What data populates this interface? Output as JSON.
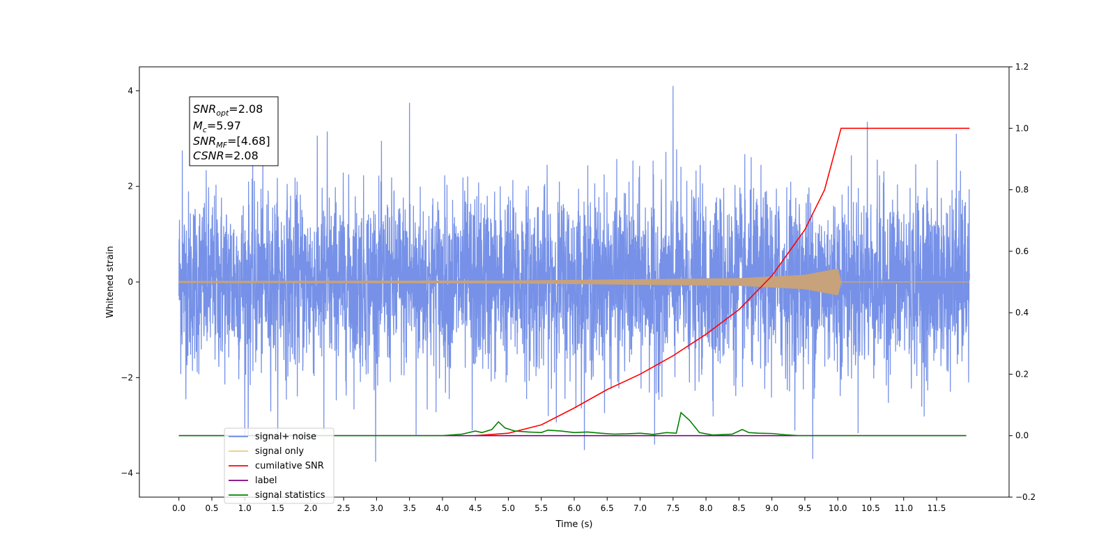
{
  "chart_data": {
    "type": "line",
    "xlabel": "Time (s)",
    "ylabel": "Whitened strain",
    "xlim": [
      -0.6,
      12.6
    ],
    "ylim": [
      -4.5,
      4.5
    ],
    "y2lim": [
      -0.2,
      1.2
    ],
    "x_ticks": [
      "0.0",
      "0.5",
      "1.0",
      "1.5",
      "2.0",
      "2.5",
      "3.0",
      "3.5",
      "4.0",
      "4.5",
      "5.0",
      "5.5",
      "6.0",
      "6.5",
      "7.0",
      "7.5",
      "8.0",
      "8.5",
      "9.0",
      "9.5",
      "10.0",
      "10.5",
      "11.0",
      "11.5"
    ],
    "y_ticks": [
      "4",
      "2",
      "0",
      "−2",
      "−4"
    ],
    "y2_ticks": [
      "1.2",
      "1.0",
      "0.8",
      "0.6",
      "0.4",
      "0.2",
      "0.0",
      "−0.2"
    ],
    "grid": false,
    "legend_position": "lower-left",
    "colors": {
      "signal_noise": "#6f8be6",
      "signal_only": "#f5c778",
      "cumulative_snr": "#ff0000",
      "label": "#800080",
      "signal_statistics": "#008000"
    },
    "annotation": {
      "snr_opt_main": "SNR",
      "snr_opt_sub": "opt",
      "snr_opt_val": "=2.08",
      "mc_main": "M",
      "mc_sub": "c",
      "mc_val": "=5.97",
      "snr_mf_main": "SNR",
      "snr_mf_sub": "MF",
      "snr_mf_val": "=[4.68]",
      "csnr_main": "CSNR",
      "csnr_val": "=2.08"
    },
    "series": [
      {
        "name": "signal+ noise",
        "axis": "left",
        "style": "noise",
        "x_range": [
          0.0,
          12.0
        ],
        "typical_amplitude": 1.1,
        "peaks": [
          {
            "x": 7.5,
            "y": 4.1
          },
          {
            "x": 3.5,
            "y": 3.75
          },
          {
            "x": 10.45,
            "y": 3.35
          },
          {
            "x": 11.8,
            "y": 3.1
          },
          {
            "x": 2.25,
            "y": 3.15
          },
          {
            "x": 0.05,
            "y": 2.75
          },
          {
            "x": 9.62,
            "y": -3.7
          },
          {
            "x": 7.22,
            "y": -3.4
          },
          {
            "x": 3.6,
            "y": -3.2
          },
          {
            "x": 1.05,
            "y": -3.2
          },
          {
            "x": 4.45,
            "y": -3.1
          },
          {
            "x": 2.2,
            "y": -3.1
          }
        ]
      },
      {
        "name": "signal only",
        "axis": "left",
        "style": "chirp",
        "x_range": [
          0.0,
          10.05
        ],
        "envelope": [
          [
            0.0,
            0.02
          ],
          [
            5.0,
            0.03
          ],
          [
            8.5,
            0.08
          ],
          [
            9.5,
            0.15
          ],
          [
            10.0,
            0.28
          ],
          [
            10.05,
            0.0
          ]
        ]
      },
      {
        "name": "cumilative SNR",
        "axis": "right",
        "points": [
          [
            4.5,
            0.0
          ],
          [
            5.0,
            0.008
          ],
          [
            5.5,
            0.035
          ],
          [
            6.0,
            0.09
          ],
          [
            6.5,
            0.15
          ],
          [
            7.0,
            0.2
          ],
          [
            7.5,
            0.26
          ],
          [
            8.0,
            0.33
          ],
          [
            8.5,
            0.41
          ],
          [
            9.0,
            0.52
          ],
          [
            9.5,
            0.67
          ],
          [
            9.8,
            0.8
          ],
          [
            10.0,
            0.96
          ],
          [
            10.05,
            1.0
          ],
          [
            12.0,
            1.0
          ]
        ]
      },
      {
        "name": "label",
        "axis": "right",
        "points": [
          [
            0.0,
            0.0
          ],
          [
            11.95,
            0.0
          ]
        ]
      },
      {
        "name": "signal statistics",
        "axis": "right",
        "points": [
          [
            0.0,
            0.0
          ],
          [
            4.0,
            0.0
          ],
          [
            4.3,
            0.005
          ],
          [
            4.5,
            0.015
          ],
          [
            4.6,
            0.01
          ],
          [
            4.75,
            0.02
          ],
          [
            4.85,
            0.045
          ],
          [
            4.95,
            0.025
          ],
          [
            5.1,
            0.015
          ],
          [
            5.3,
            0.012
          ],
          [
            5.5,
            0.01
          ],
          [
            5.6,
            0.018
          ],
          [
            5.8,
            0.015
          ],
          [
            6.0,
            0.01
          ],
          [
            6.2,
            0.012
          ],
          [
            6.4,
            0.008
          ],
          [
            6.6,
            0.005
          ],
          [
            6.8,
            0.006
          ],
          [
            7.0,
            0.008
          ],
          [
            7.2,
            0.004
          ],
          [
            7.4,
            0.01
          ],
          [
            7.55,
            0.008
          ],
          [
            7.62,
            0.075
          ],
          [
            7.75,
            0.05
          ],
          [
            7.9,
            0.01
          ],
          [
            8.1,
            0.002
          ],
          [
            8.4,
            0.005
          ],
          [
            8.55,
            0.02
          ],
          [
            8.65,
            0.01
          ],
          [
            8.8,
            0.008
          ],
          [
            9.0,
            0.007
          ],
          [
            9.2,
            0.003
          ],
          [
            9.4,
            0.0
          ],
          [
            11.95,
            0.0
          ]
        ]
      }
    ]
  }
}
